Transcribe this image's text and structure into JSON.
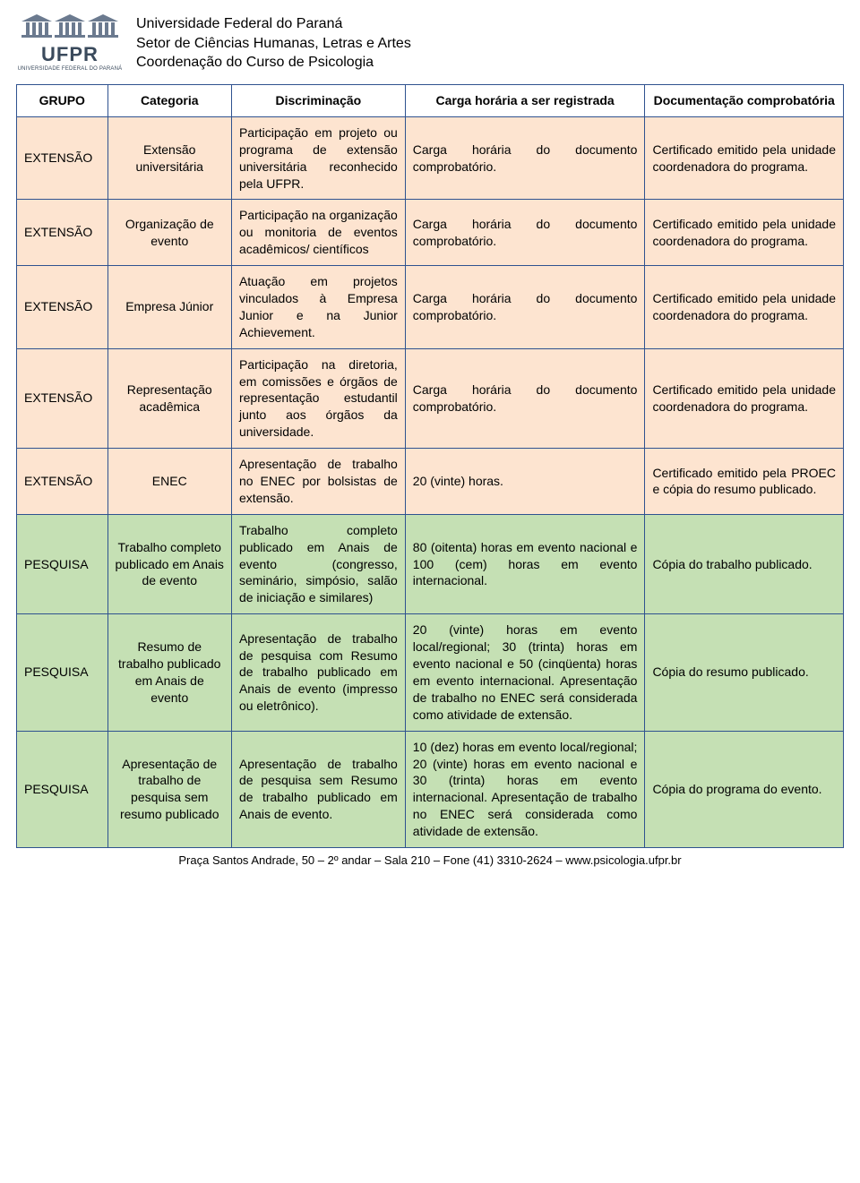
{
  "header": {
    "line1": "Universidade Federal do Paraná",
    "line2": "Setor de Ciências Humanas, Letras e Artes",
    "line3": "Coordenação do Curso de Psicologia",
    "logo_text": "UFPR",
    "logo_sub": "UNIVERSIDADE FEDERAL DO PARANÁ"
  },
  "table": {
    "columns": [
      "GRUPO",
      "Categoria",
      "Discriminação",
      "Carga horária a ser registrada",
      "Documentação comprobatória"
    ],
    "row_colors": {
      "extensao": "#fde4d0",
      "pesquisa": "#c5e0b4"
    },
    "border_color": "#2f528f",
    "rows": [
      {
        "grupo": "EXTENSÃO",
        "categoria": "Extensão universitária",
        "discr": "Participação em projeto ou programa de extensão universitária reconhecido pela UFPR.",
        "carga": "Carga horária do documento comprobatório.",
        "doc": "Certificado emitido pela unidade coordenadora do programa.",
        "color": "extensao"
      },
      {
        "grupo": "EXTENSÃO",
        "categoria": "Organização de evento",
        "discr": "Participação na organização ou monitoria de eventos acadêmicos/ científicos",
        "carga": "Carga horária do documento comprobatório.",
        "doc": "Certificado emitido pela unidade coordenadora do programa.",
        "color": "extensao"
      },
      {
        "grupo": "EXTENSÃO",
        "categoria": "Empresa Júnior",
        "discr": "Atuação em projetos vinculados à Empresa Junior e na Junior Achievement.",
        "carga": "Carga horária do documento comprobatório.",
        "doc": "Certificado emitido pela unidade coordenadora do programa.",
        "color": "extensao"
      },
      {
        "grupo": "EXTENSÃO",
        "categoria": "Representação acadêmica",
        "discr": "Participação na diretoria, em comissões e órgãos de representação estudantil junto aos órgãos da universidade.",
        "carga": "Carga horária do documento comprobatório.",
        "doc": "Certificado emitido pela unidade coordenadora do programa.",
        "color": "extensao"
      },
      {
        "grupo": "EXTENSÃO",
        "categoria": "ENEC",
        "discr": "Apresentação de trabalho no ENEC por bolsistas de extensão.",
        "carga": "20 (vinte) horas.",
        "doc": "Certificado emitido pela PROEC e cópia do resumo publicado.",
        "color": "extensao"
      },
      {
        "grupo": "PESQUISA",
        "categoria": "Trabalho completo publicado em Anais de evento",
        "discr": "Trabalho completo publicado em Anais de evento (congresso, seminário, simpósio, salão de iniciação e similares)",
        "carga": "80 (oitenta) horas em evento nacional e 100 (cem) horas em evento internacional.",
        "doc": "Cópia do trabalho publicado.",
        "color": "pesquisa"
      },
      {
        "grupo": "PESQUISA",
        "categoria": "Resumo de trabalho publicado em Anais de evento",
        "discr": "Apresentação de trabalho de pesquisa com Resumo de trabalho publicado em Anais de evento (impresso ou eletrônico).",
        "carga": "20 (vinte) horas em evento local/regional; 30 (trinta) horas em evento nacional e 50 (cinqüenta) horas em evento internacional. Apresentação de trabalho no ENEC será considerada como atividade de extensão.",
        "doc": "Cópia do resumo publicado.",
        "color": "pesquisa"
      },
      {
        "grupo": "PESQUISA",
        "categoria": "Apresentação de trabalho de pesquisa sem resumo publicado",
        "discr": "Apresentação de trabalho de pesquisa sem Resumo de trabalho publicado em Anais de evento.",
        "carga": "10 (dez) horas em evento local/regional; 20 (vinte) horas em evento nacional e 30 (trinta) horas em evento internacional. Apresentação de trabalho no ENEC será considerada como atividade de extensão.",
        "doc": "Cópia do programa do evento.",
        "color": "pesquisa"
      }
    ]
  },
  "footer": "Praça Santos Andrade, 50 – 2º andar – Sala 210 – Fone (41) 3310-2624 – www.psicologia.ufpr.br"
}
